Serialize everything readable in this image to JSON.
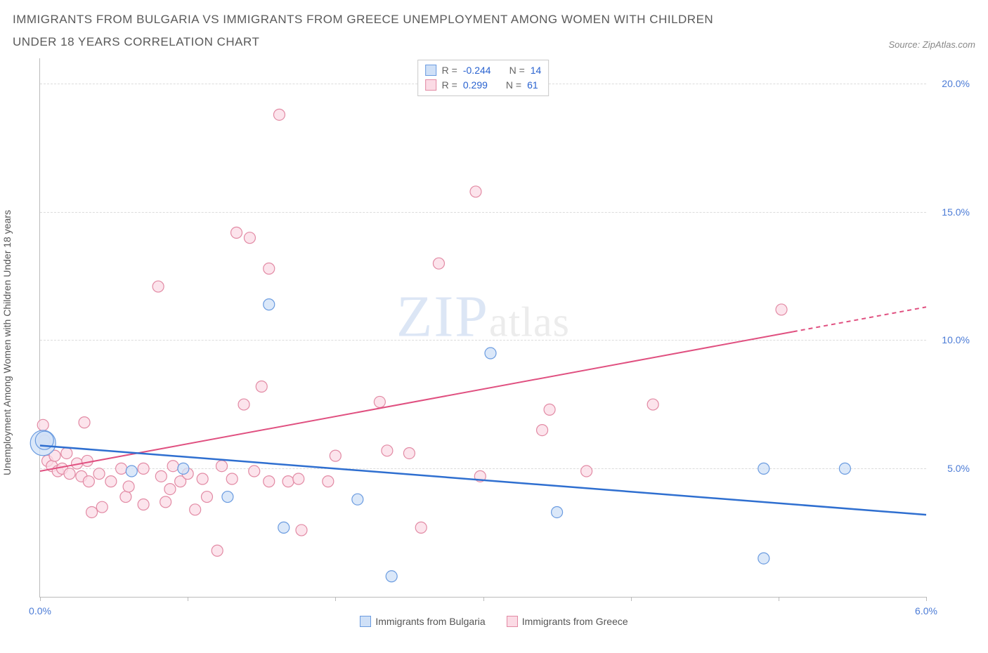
{
  "title": "IMMIGRANTS FROM BULGARIA VS IMMIGRANTS FROM GREECE UNEMPLOYMENT AMONG WOMEN WITH CHILDREN UNDER 18 YEARS CORRELATION CHART",
  "source_label": "Source: ",
  "source_name": "ZipAtlas.com",
  "y_axis_label": "Unemployment Among Women with Children Under 18 years",
  "watermark_bold": "ZIP",
  "watermark_rest": "atlas",
  "chart": {
    "type": "scatter",
    "x_domain": [
      0.0,
      6.0
    ],
    "y_domain": [
      0.0,
      21.0
    ],
    "x_ticks": [
      0.0,
      1.0,
      2.0,
      3.0,
      4.0,
      5.0,
      6.0
    ],
    "x_tick_labels": {
      "0": "0.0%",
      "6": "6.0%"
    },
    "y_ticks": [
      5.0,
      10.0,
      15.0,
      20.0
    ],
    "y_tick_labels": [
      "5.0%",
      "10.0%",
      "15.0%",
      "20.0%"
    ],
    "grid_color": "#dcdcdc",
    "axis_color": "#bbbbbb",
    "tick_label_color": "#4b7bd6",
    "background_color": "#ffffff",
    "series": [
      {
        "name": "Immigrants from Bulgaria",
        "legend_label": "Immigrants from Bulgaria",
        "color_fill": "#cfe0f7",
        "color_stroke": "#6a9be0",
        "trend_color": "#2f6fd0",
        "r_label": "R = ",
        "r_value": "-0.244",
        "n_label": "N = ",
        "n_value": "14",
        "marker_radius": 8,
        "trend_line": {
          "x1": 0.0,
          "y1": 5.9,
          "x2": 6.0,
          "y2": 3.2
        },
        "points": [
          {
            "x": 0.02,
            "y": 6.0,
            "r": 18
          },
          {
            "x": 0.03,
            "y": 6.1,
            "r": 13
          },
          {
            "x": 0.62,
            "y": 4.9,
            "r": 8
          },
          {
            "x": 0.97,
            "y": 5.0,
            "r": 8
          },
          {
            "x": 1.27,
            "y": 3.9,
            "r": 8
          },
          {
            "x": 1.55,
            "y": 11.4,
            "r": 8
          },
          {
            "x": 1.65,
            "y": 2.7,
            "r": 8
          },
          {
            "x": 2.15,
            "y": 3.8,
            "r": 8
          },
          {
            "x": 2.38,
            "y": 0.8,
            "r": 8
          },
          {
            "x": 3.05,
            "y": 9.5,
            "r": 8
          },
          {
            "x": 3.5,
            "y": 3.3,
            "r": 8
          },
          {
            "x": 4.9,
            "y": 1.5,
            "r": 8
          },
          {
            "x": 4.9,
            "y": 5.0,
            "r": 8
          },
          {
            "x": 5.45,
            "y": 5.0,
            "r": 8
          }
        ]
      },
      {
        "name": "Immigrants from Greece",
        "legend_label": "Immigrants from Greece",
        "color_fill": "#fbdbe5",
        "color_stroke": "#e28aa4",
        "trend_color": "#e05080",
        "r_label": "R = ",
        "r_value": "0.299",
        "n_label": "N = ",
        "n_value": "61",
        "marker_radius": 8,
        "trend_line": {
          "x1": 0.0,
          "y1": 4.9,
          "x2": 6.0,
          "y2": 11.3
        },
        "trend_dash_after_x": 5.1,
        "points": [
          {
            "x": 0.02,
            "y": 6.7
          },
          {
            "x": 0.03,
            "y": 6.1
          },
          {
            "x": 0.05,
            "y": 5.3
          },
          {
            "x": 0.08,
            "y": 5.1
          },
          {
            "x": 0.1,
            "y": 5.5
          },
          {
            "x": 0.12,
            "y": 4.9
          },
          {
            "x": 0.15,
            "y": 5.0
          },
          {
            "x": 0.18,
            "y": 5.6
          },
          {
            "x": 0.2,
            "y": 4.8
          },
          {
            "x": 0.25,
            "y": 5.2
          },
          {
            "x": 0.28,
            "y": 4.7
          },
          {
            "x": 0.3,
            "y": 6.8
          },
          {
            "x": 0.32,
            "y": 5.3
          },
          {
            "x": 0.33,
            "y": 4.5
          },
          {
            "x": 0.35,
            "y": 3.3
          },
          {
            "x": 0.4,
            "y": 4.8
          },
          {
            "x": 0.42,
            "y": 3.5
          },
          {
            "x": 0.48,
            "y": 4.5
          },
          {
            "x": 0.55,
            "y": 5.0
          },
          {
            "x": 0.58,
            "y": 3.9
          },
          {
            "x": 0.6,
            "y": 4.3
          },
          {
            "x": 0.7,
            "y": 5.0
          },
          {
            "x": 0.7,
            "y": 3.6
          },
          {
            "x": 0.8,
            "y": 12.1
          },
          {
            "x": 0.82,
            "y": 4.7
          },
          {
            "x": 0.85,
            "y": 3.7
          },
          {
            "x": 0.88,
            "y": 4.2
          },
          {
            "x": 0.9,
            "y": 5.1
          },
          {
            "x": 0.95,
            "y": 4.5
          },
          {
            "x": 1.0,
            "y": 4.8
          },
          {
            "x": 1.05,
            "y": 3.4
          },
          {
            "x": 1.1,
            "y": 4.6
          },
          {
            "x": 1.13,
            "y": 3.9
          },
          {
            "x": 1.2,
            "y": 1.8
          },
          {
            "x": 1.23,
            "y": 5.1
          },
          {
            "x": 1.3,
            "y": 4.6
          },
          {
            "x": 1.33,
            "y": 14.2
          },
          {
            "x": 1.38,
            "y": 7.5
          },
          {
            "x": 1.42,
            "y": 14.0
          },
          {
            "x": 1.45,
            "y": 4.9
          },
          {
            "x": 1.5,
            "y": 8.2
          },
          {
            "x": 1.55,
            "y": 4.5
          },
          {
            "x": 1.55,
            "y": 12.8
          },
          {
            "x": 1.62,
            "y": 18.8
          },
          {
            "x": 1.68,
            "y": 4.5
          },
          {
            "x": 1.75,
            "y": 4.6
          },
          {
            "x": 1.77,
            "y": 2.6
          },
          {
            "x": 1.95,
            "y": 4.5
          },
          {
            "x": 2.0,
            "y": 5.5
          },
          {
            "x": 2.3,
            "y": 7.6
          },
          {
            "x": 2.35,
            "y": 5.7
          },
          {
            "x": 2.5,
            "y": 5.6
          },
          {
            "x": 2.58,
            "y": 2.7
          },
          {
            "x": 2.7,
            "y": 13.0
          },
          {
            "x": 2.95,
            "y": 15.8
          },
          {
            "x": 2.98,
            "y": 4.7
          },
          {
            "x": 3.4,
            "y": 6.5
          },
          {
            "x": 3.45,
            "y": 7.3
          },
          {
            "x": 3.7,
            "y": 4.9
          },
          {
            "x": 5.02,
            "y": 11.2
          },
          {
            "x": 4.15,
            "y": 7.5
          }
        ]
      }
    ]
  }
}
